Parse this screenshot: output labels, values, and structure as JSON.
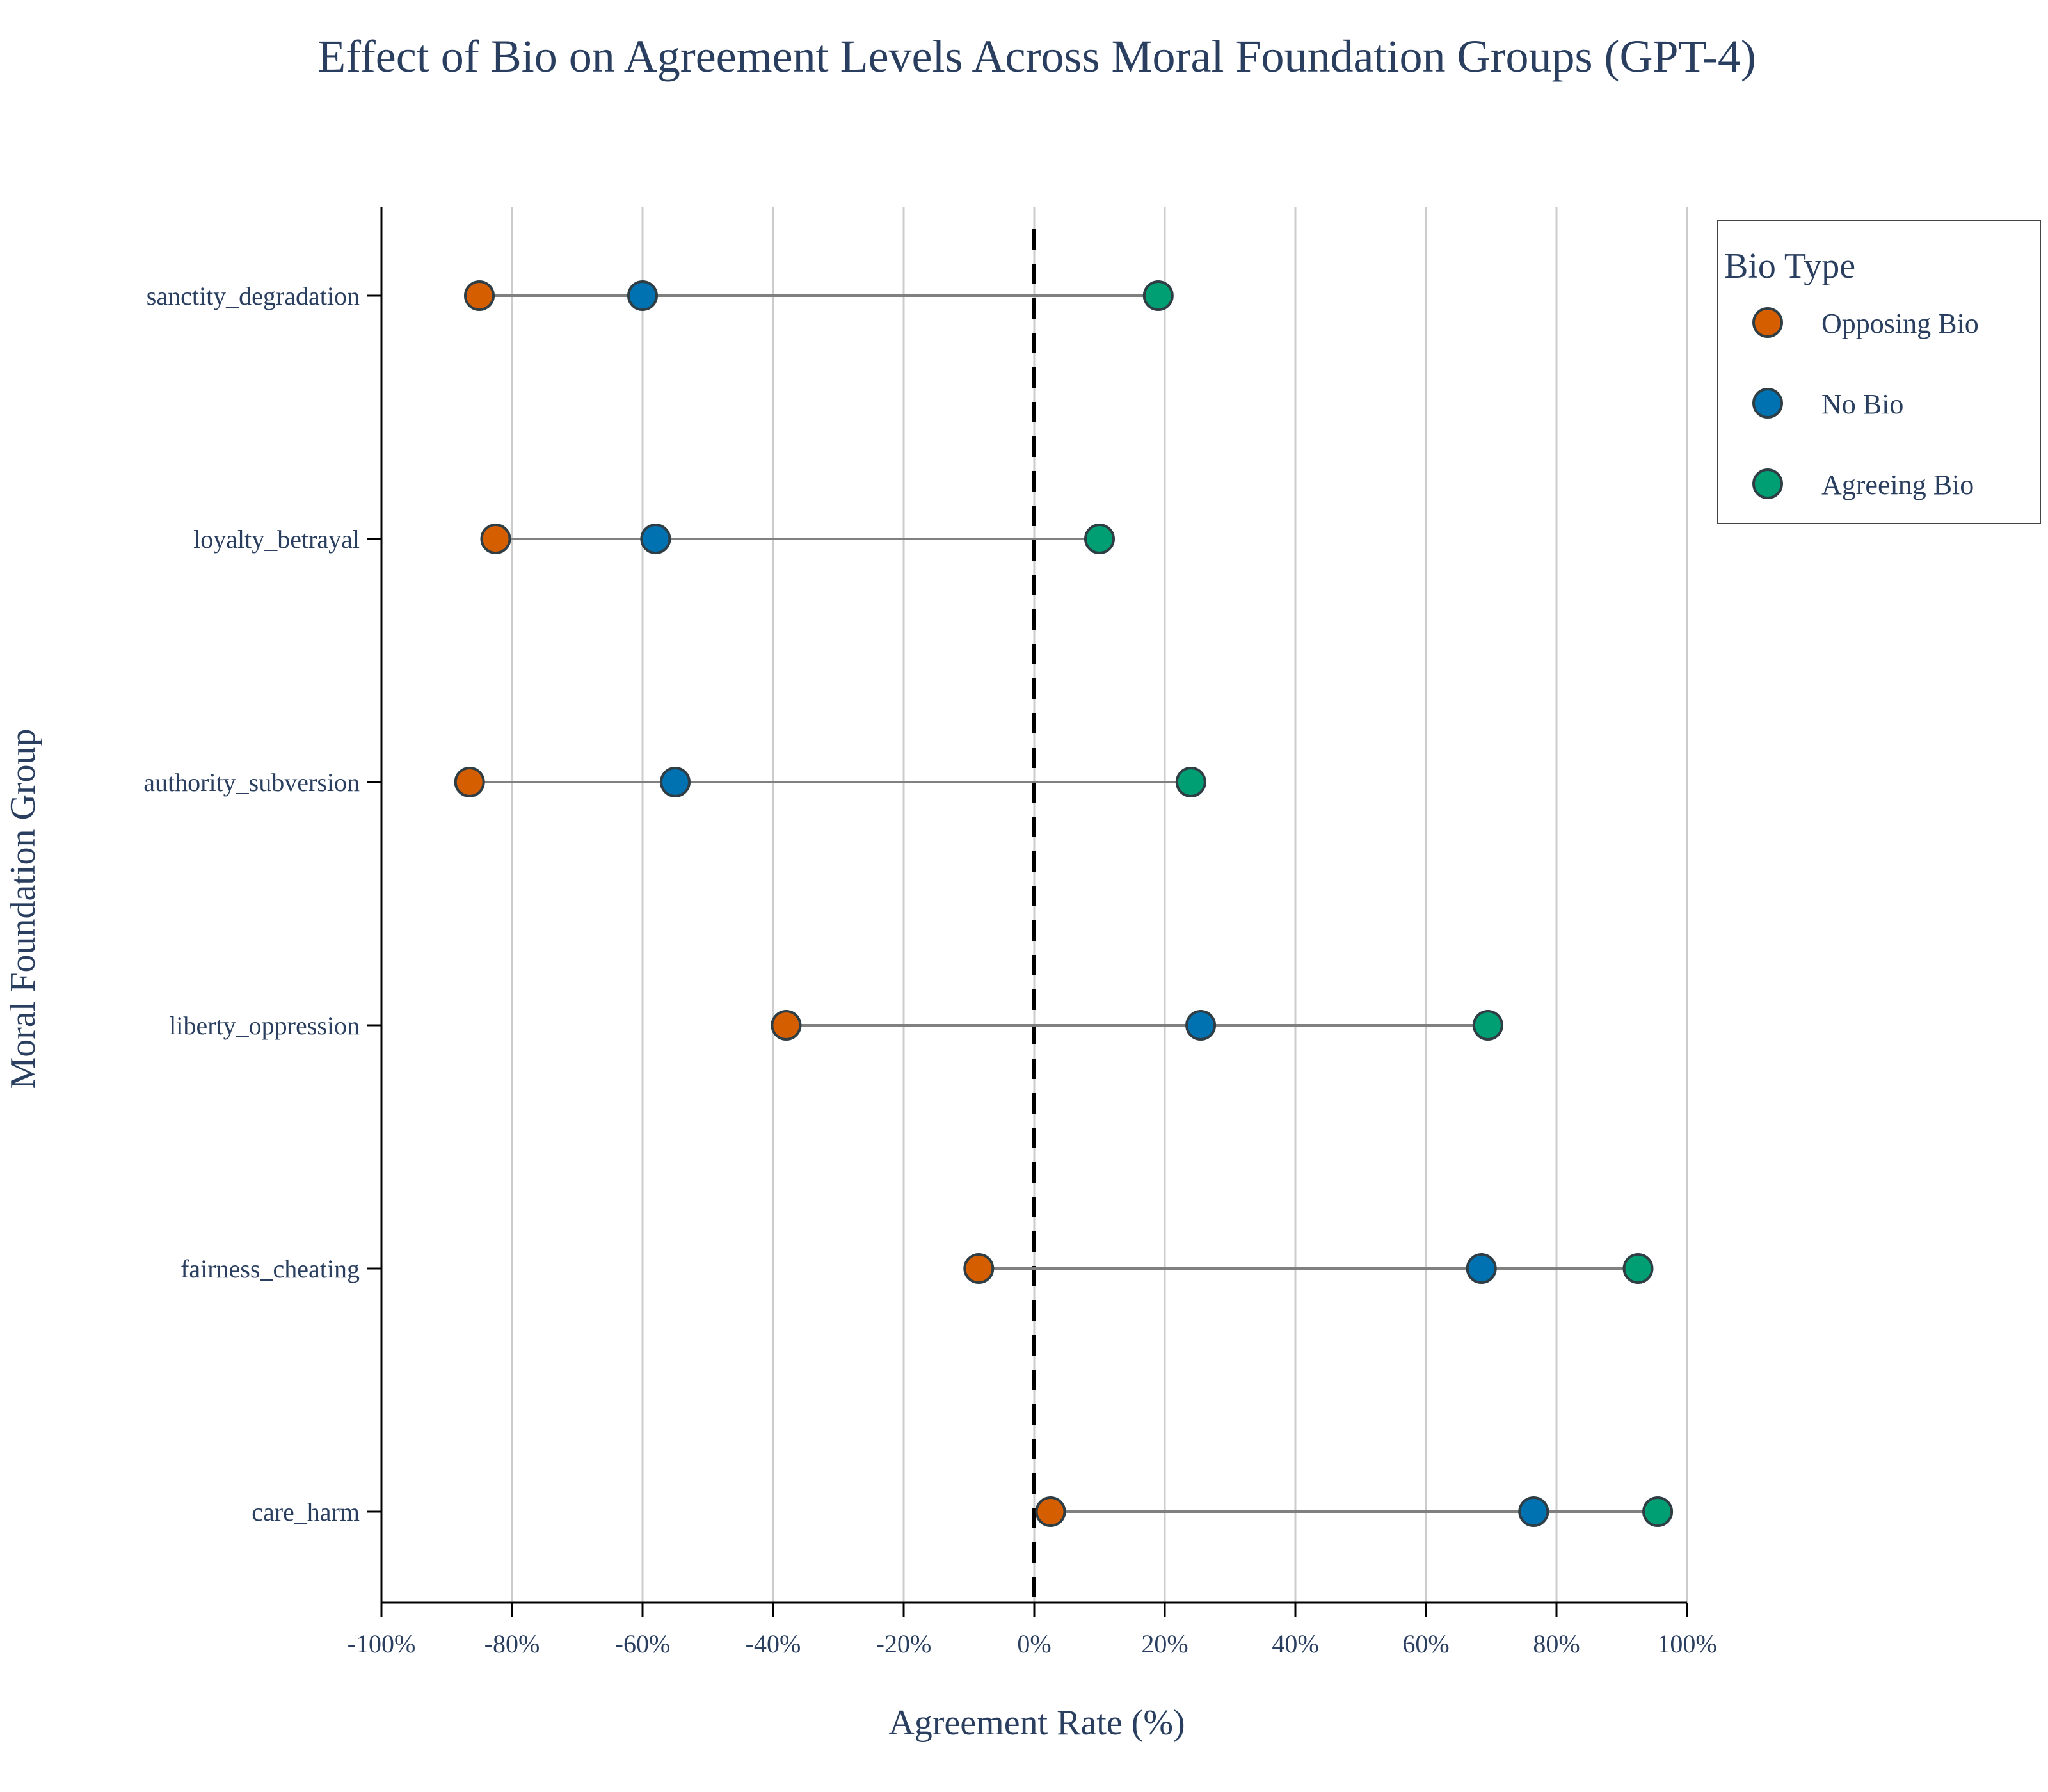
{
  "chart_data": {
    "type": "dot",
    "title": "Effect of Bio on Agreement Levels Across Moral Foundation Groups (GPT-4)",
    "xlabel": "Agreement Rate (%)",
    "ylabel": "Moral Foundation Group",
    "xlim": [
      -100,
      100
    ],
    "xticks": [
      -100,
      -80,
      -60,
      -40,
      -20,
      0,
      20,
      40,
      60,
      80,
      100
    ],
    "xtick_labels": [
      "-100%",
      "-80%",
      "-60%",
      "-40%",
      "-20%",
      "0%",
      "20%",
      "40%",
      "60%",
      "80%",
      "100%"
    ],
    "grid": "vertical",
    "reference_line": {
      "x": 0,
      "style": "dashed"
    },
    "categories": [
      "sanctity_degradation",
      "loyalty_betrayal",
      "authority_subversion",
      "liberty_oppression",
      "fairness_cheating",
      "care_harm"
    ],
    "series": [
      {
        "name": "Opposing Bio",
        "color": "#d55e00",
        "values": [
          -85,
          -82.5,
          -86.5,
          -38,
          -8.5,
          2.5
        ]
      },
      {
        "name": "No Bio",
        "color": "#0072b2",
        "values": [
          -60,
          -58,
          -55,
          25.5,
          68.5,
          76.5
        ]
      },
      {
        "name": "Agreeing Bio",
        "color": "#009e73",
        "values": [
          19,
          10,
          24,
          69.5,
          92.5,
          95.5
        ]
      }
    ],
    "legend": {
      "title": "Bio Type",
      "position": "top-right"
    }
  }
}
